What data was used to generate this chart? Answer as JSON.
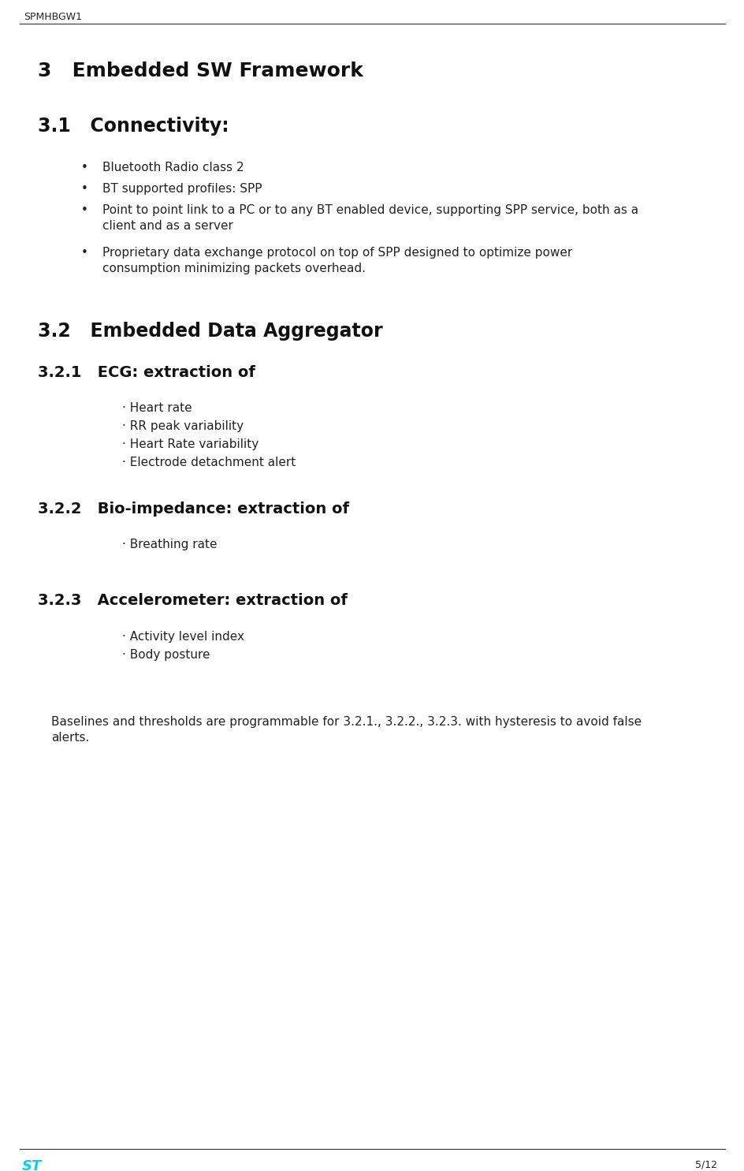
{
  "header_text": "SPMHBGW1",
  "footer_page": "5/12",
  "bg_color": "#ffffff",
  "section3_title": "3   Embedded SW Framework",
  "section31_title": "3.1   Connectivity:",
  "section32_title": "3.2   Embedded Data Aggregator",
  "section321_title": "3.2.1   ECG: extraction of",
  "section322_title": "3.2.2   Bio-impedance: extraction of",
  "section323_title": "3.2.3   Accelerometer: extraction of",
  "bullets": [
    "Bluetooth Radio class 2",
    "BT supported profiles: SPP",
    "Point to point link to a PC or to any BT enabled device, supporting SPP service, both as a\nclient and as a server",
    "Proprietary data exchange protocol on top of SPP designed to optimize power\nconsumption minimizing packets overhead."
  ],
  "ecg_items": [
    "· Heart rate",
    "· RR peak variability",
    "· Heart Rate variability",
    "· Electrode detachment alert"
  ],
  "bio_items": [
    "· Breathing rate"
  ],
  "accel_items": [
    "· Activity level index",
    "· Body posture"
  ],
  "footer_note": "Baselines and thresholds are programmable for 3.2.1., 3.2.2., 3.2.3. with hysteresis to avoid false\nalerts.",
  "st_logo_color": "#00d4e8"
}
